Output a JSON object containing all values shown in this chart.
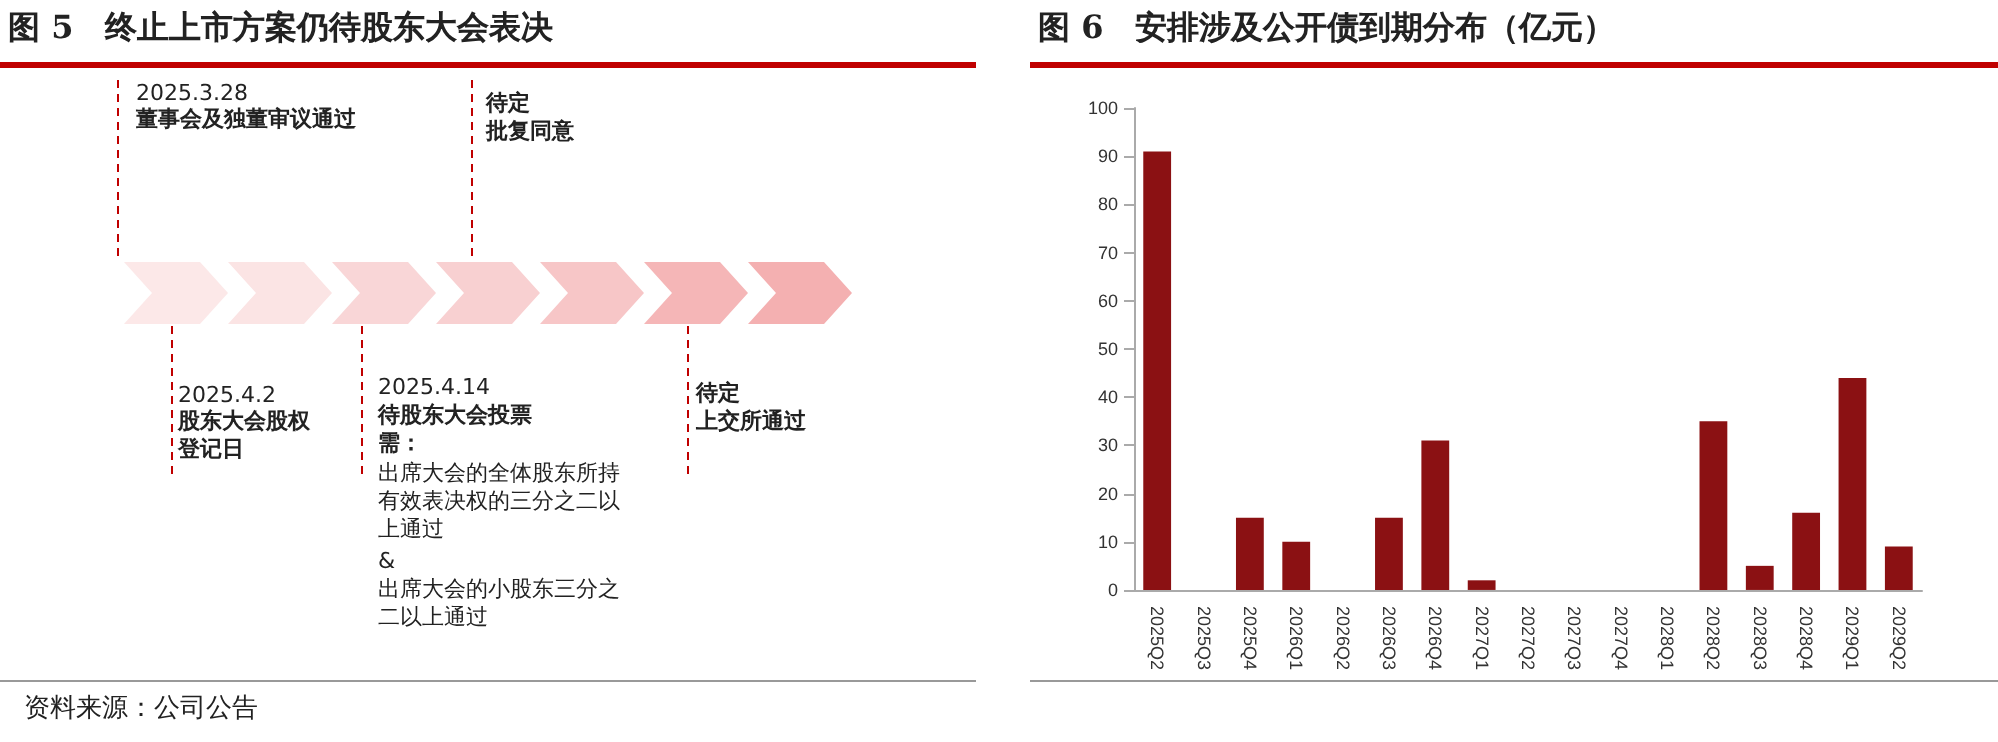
{
  "chart_data": [
    {
      "type": "other",
      "title": "图 5　终止上市方案仍待股东大会表决",
      "annotations": [
        "2025.3.28",
        "董事会及独董审议通过",
        "待定",
        "批复同意",
        "2025.4.2",
        "股东大会股权",
        "登记日",
        "2025.4.14",
        "待股东大会投票",
        "需：",
        "出席大会的全体股东所持有效表决权的三分之二以上通过",
        "&",
        "出席大会的小股东三分之二以上通过",
        "待定",
        "上交所通过",
        "资料来源：公司公告"
      ]
    },
    {
      "type": "bar",
      "title": "图 6　安排涉及公开债到期分布（亿元）",
      "categories": [
        "2025Q2",
        "2025Q3",
        "2025Q4",
        "2026Q1",
        "2026Q2",
        "2026Q3",
        "2026Q4",
        "2027Q1",
        "2027Q2",
        "2027Q3",
        "2027Q4",
        "2028Q1",
        "2028Q2",
        "2028Q3",
        "2028Q4",
        "2029Q1",
        "2029Q2"
      ],
      "values": [
        91,
        0,
        15,
        10,
        0,
        15,
        31,
        2,
        0,
        0,
        0,
        0,
        35,
        5,
        16,
        44,
        9
      ],
      "color": "#8b1113",
      "ylim": [
        0,
        100
      ],
      "yticks": [
        0,
        10,
        20,
        30,
        40,
        50,
        60,
        70,
        80,
        90,
        100
      ],
      "grid": false
    }
  ]
}
